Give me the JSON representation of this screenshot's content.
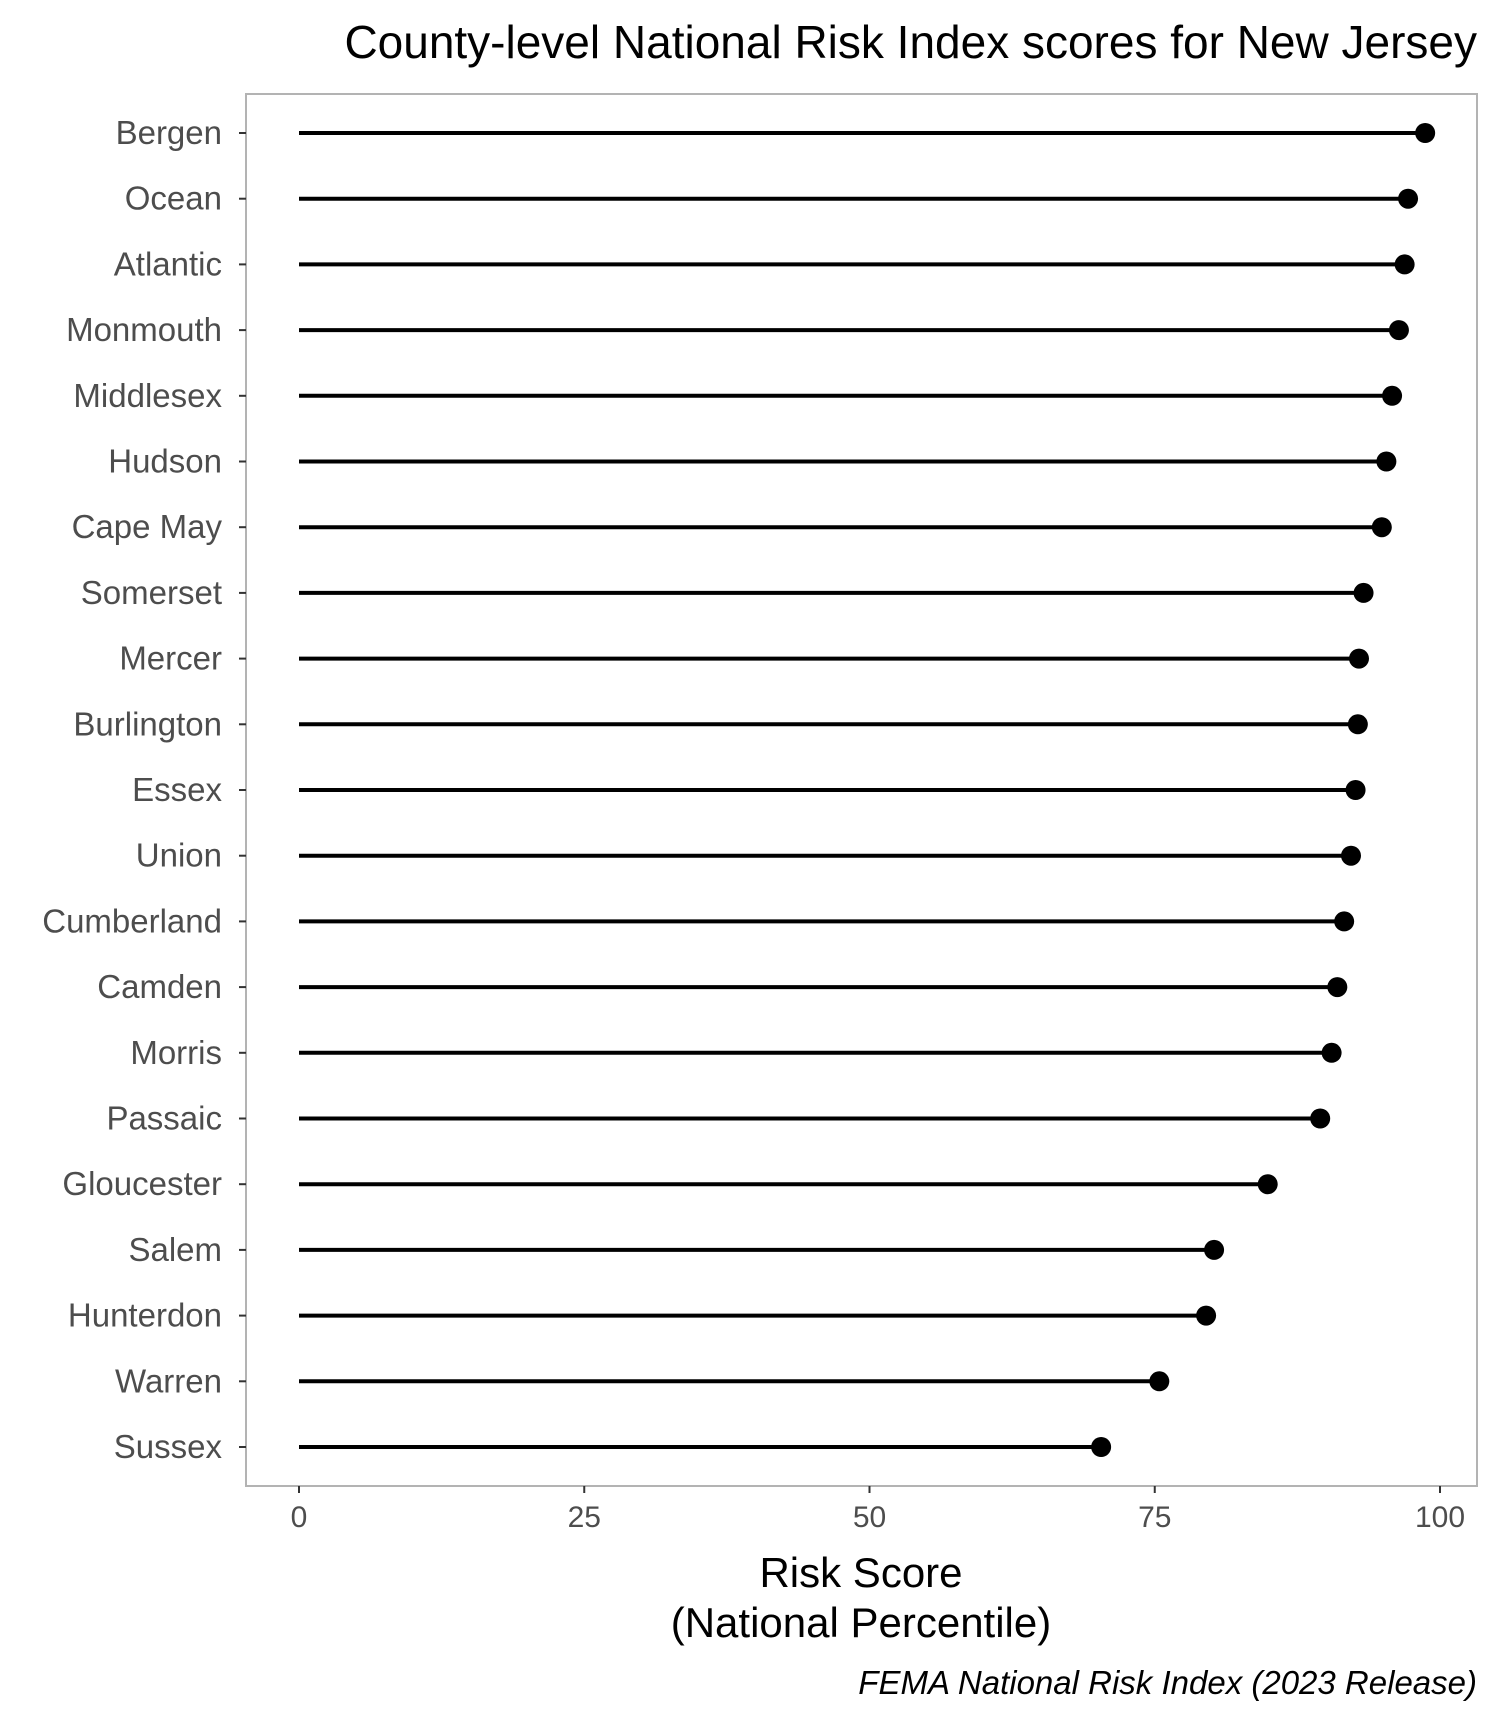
{
  "chart_data": {
    "type": "lollipop",
    "title": "County-level National Risk Index scores for New Jersey",
    "xlabel_lines": [
      "Risk Score",
      "(National Percentile)"
    ],
    "ylabel": "",
    "caption": "FEMA National Risk Index (2023 Release)",
    "xlim": [
      0,
      100
    ],
    "xticks": [
      "0",
      "25",
      "50",
      "75",
      "100"
    ],
    "grid": false,
    "panel_border": true,
    "categories": [
      "Bergen",
      "Ocean",
      "Atlantic",
      "Monmouth",
      "Middlesex",
      "Hudson",
      "Cape May",
      "Somerset",
      "Mercer",
      "Burlington",
      "Essex",
      "Union",
      "Cumberland",
      "Camden",
      "Morris",
      "Passaic",
      "Gloucester",
      "Salem",
      "Hunterdon",
      "Warren",
      "Sussex"
    ],
    "values": [
      98.7,
      97.2,
      96.9,
      96.4,
      95.8,
      95.3,
      94.9,
      93.3,
      92.9,
      92.8,
      92.6,
      92.2,
      91.6,
      91.0,
      90.5,
      89.5,
      84.9,
      80.2,
      79.5,
      75.4,
      70.3
    ],
    "colors": {
      "stem": "#000000",
      "point": "#000000",
      "panel_border": "#b3b3b3",
      "axis_text": "#4d4d4d"
    }
  }
}
